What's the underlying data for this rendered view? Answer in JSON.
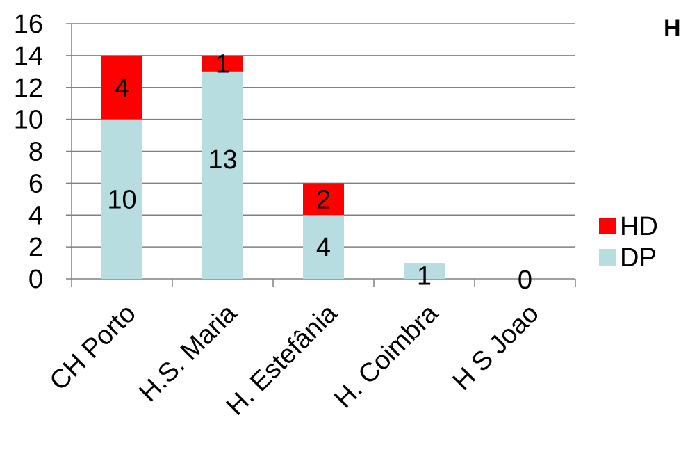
{
  "chart_data": {
    "type": "bar",
    "stacked": true,
    "title": "H",
    "categories": [
      "CH Porto",
      "H.S. Maria",
      "H. Estefânia",
      "H. Coimbra",
      "H S Joao"
    ],
    "series": [
      {
        "name": "DP",
        "values": [
          10,
          13,
          4,
          1,
          0
        ],
        "color": "#b7dde1"
      },
      {
        "name": "HD",
        "values": [
          4,
          1,
          2,
          0,
          0
        ],
        "color": "#ff0000"
      }
    ],
    "data_labels": {
      "DP": [
        "10",
        "13",
        "4",
        "1",
        "0"
      ],
      "HD": [
        "4",
        "1",
        "2",
        "",
        ""
      ]
    },
    "yticks": [
      "0",
      "2",
      "4",
      "6",
      "8",
      "10",
      "12",
      "14",
      "16"
    ],
    "ylim": [
      0,
      16
    ],
    "grid": true,
    "legend": {
      "position": "right",
      "entries": [
        "HD",
        "DP"
      ]
    }
  }
}
